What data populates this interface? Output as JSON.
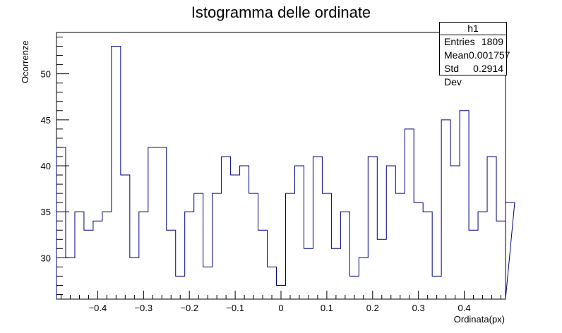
{
  "chart_data": {
    "type": "histogram",
    "title": "Istogramma delle ordinate",
    "xlabel": "Ordinata(px)",
    "ylabel": "Ocorrenze",
    "xlim": [
      -0.49,
      0.49
    ],
    "ylim": [
      25.5,
      54.5
    ],
    "bin_width": 0.02,
    "xticks": [
      -0.4,
      -0.3,
      -0.2,
      -0.1,
      0,
      0.1,
      0.2,
      0.3,
      0.4
    ],
    "xtick_labels": [
      "−0.4",
      "−0.3",
      "−0.2",
      "−0.1",
      "0",
      "0.1",
      "0.2",
      "0.3",
      "0.4"
    ],
    "yticks": [
      30,
      35,
      40,
      45,
      50
    ],
    "ytick_labels": [
      "30",
      "35",
      "40",
      "45",
      "50"
    ],
    "line_color": "#000080",
    "values": [
      42,
      30,
      35,
      33,
      34,
      35,
      53,
      39,
      30,
      35,
      42,
      42,
      33,
      28,
      35,
      37,
      29,
      37,
      41,
      39,
      40,
      37,
      33,
      29,
      27,
      37,
      40,
      31,
      41,
      37,
      31,
      35,
      28,
      30,
      41,
      32,
      40,
      37,
      44,
      36,
      35,
      28,
      45,
      40,
      46,
      33,
      35,
      41,
      34,
      36
    ],
    "stats_box": {
      "name": "h1",
      "rows": [
        {
          "label": "Entries",
          "value": "1809"
        },
        {
          "label": "Mean",
          "value": "0.001757"
        },
        {
          "label": "Std Dev",
          "value": "0.2914"
        }
      ]
    }
  }
}
